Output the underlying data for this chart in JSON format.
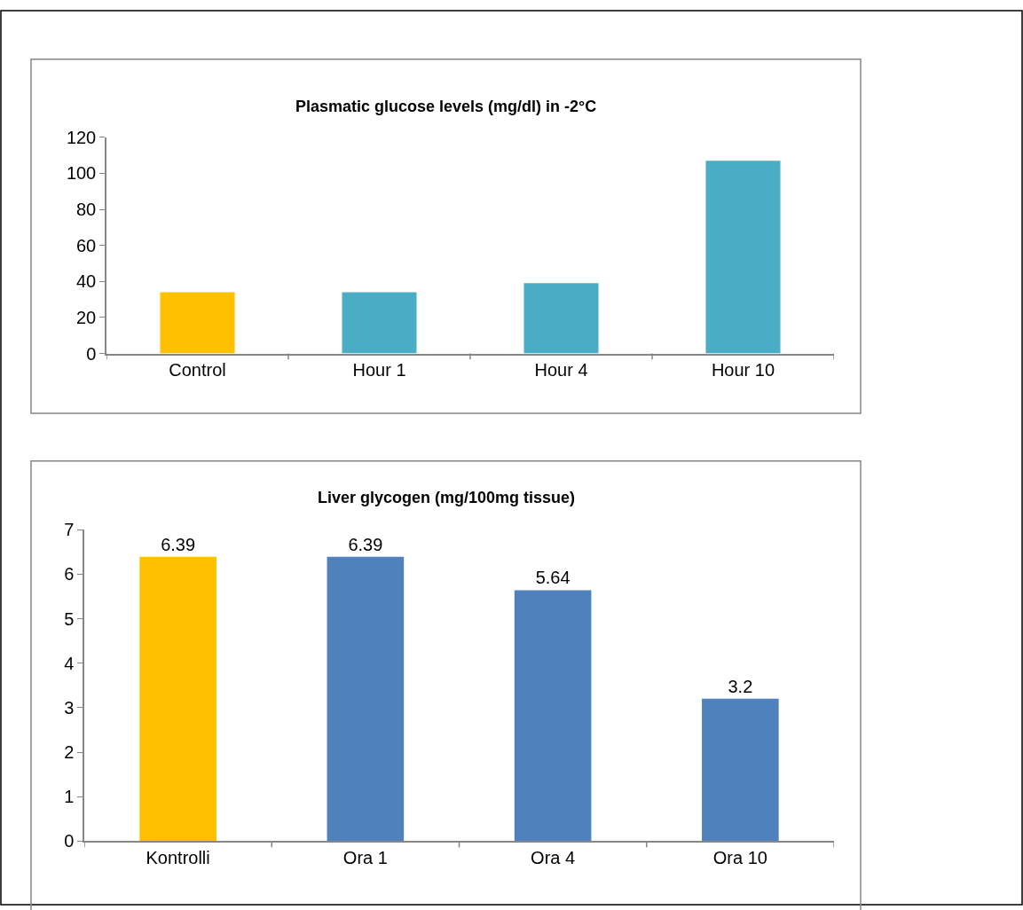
{
  "chart_data": [
    {
      "type": "bar",
      "title": "Plasmatic glucose levels (mg/dl) in -2°C",
      "categories": [
        "Control",
        "Hour 1",
        "Hour 4",
        "Hour 10"
      ],
      "values": [
        34,
        34,
        39,
        107
      ],
      "colors": [
        "#ffc000",
        "#4bacc6",
        "#4bacc6",
        "#4bacc6"
      ],
      "ylim": [
        0,
        120
      ],
      "yticks": [
        0,
        20,
        40,
        60,
        80,
        100,
        120
      ],
      "grid": false
    },
    {
      "type": "bar",
      "title": "Liver glycogen (mg/100mg tissue)",
      "categories": [
        "Kontrolli",
        "Ora 1",
        "Ora 4",
        "Ora 10"
      ],
      "values": [
        6.39,
        6.39,
        5.64,
        3.2
      ],
      "colors": [
        "#ffc000",
        "#4f81bd",
        "#4f81bd",
        "#4f81bd"
      ],
      "ylim": [
        0,
        7
      ],
      "yticks": [
        0,
        1,
        2,
        3,
        4,
        5,
        6,
        7
      ],
      "grid": false,
      "data_labels": true
    }
  ]
}
